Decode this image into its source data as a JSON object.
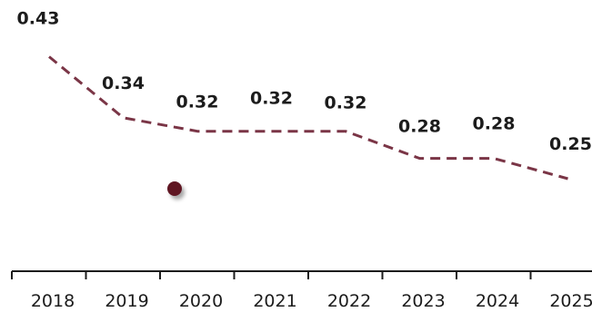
{
  "chart_data": {
    "type": "line",
    "categories": [
      "2018",
      "2019",
      "2020",
      "2021",
      "2022",
      "2023",
      "2024",
      "2025"
    ],
    "values": [
      0.43,
      0.34,
      0.32,
      0.32,
      0.32,
      0.28,
      0.28,
      0.25
    ],
    "data_labels": [
      "0.43",
      "0.34",
      "0.32",
      "0.32",
      "0.32",
      "0.28",
      "0.28",
      "0.25"
    ],
    "title": "",
    "xlabel": "",
    "ylabel": "",
    "grid": false,
    "line_style": "dashed",
    "colors": {
      "line": "#7a3546",
      "marker": "#5e1524",
      "axis": "#1c1c1c",
      "text": "#1c1c1c"
    }
  }
}
